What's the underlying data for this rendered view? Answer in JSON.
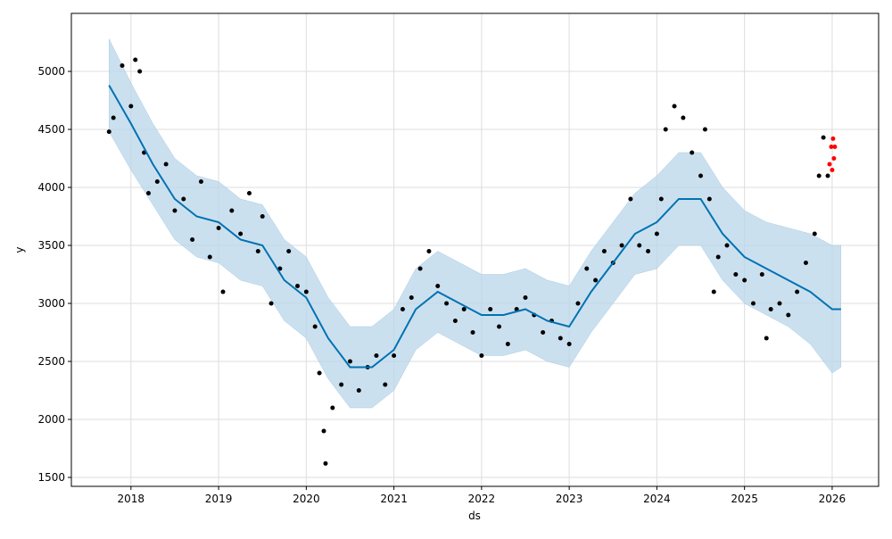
{
  "chart_data": {
    "type": "forecast",
    "x_label": "ds",
    "y_label": "y",
    "xlim": [
      2017.32,
      2026.53
    ],
    "xticks": [
      2018,
      2019,
      2020,
      2021,
      2022,
      2023,
      2024,
      2025,
      2026
    ],
    "ylim": [
      1423,
      5500
    ],
    "yticks": [
      1500,
      2000,
      2500,
      3000,
      3500,
      4000,
      4500,
      5000
    ],
    "grid": true,
    "forecast": {
      "color": "#0072b2",
      "band_color": "#b9d6ea",
      "x": [
        2017.75,
        2018.0,
        2018.25,
        2018.5,
        2018.75,
        2019.0,
        2019.25,
        2019.5,
        2019.75,
        2020.0,
        2020.25,
        2020.5,
        2020.75,
        2021.0,
        2021.25,
        2021.5,
        2021.75,
        2022.0,
        2022.25,
        2022.5,
        2022.75,
        2023.0,
        2023.25,
        2023.5,
        2023.75,
        2024.0,
        2024.25,
        2024.5,
        2024.75,
        2025.0,
        2025.25,
        2025.5,
        2025.75,
        2026.0,
        2026.1
      ],
      "yhat": [
        4880,
        4550,
        4200,
        3900,
        3750,
        3700,
        3550,
        3500,
        3200,
        3050,
        2700,
        2450,
        2450,
        2600,
        2950,
        3100,
        3000,
        2900,
        2900,
        2950,
        2850,
        2800,
        3100,
        3350,
        3600,
        3700,
        3900,
        3900,
        3600,
        3400,
        3300,
        3200,
        3100,
        2950,
        2950
      ],
      "yhat_upper": [
        5280,
        4900,
        4550,
        4250,
        4100,
        4050,
        3900,
        3850,
        3550,
        3400,
        3050,
        2800,
        2800,
        2950,
        3300,
        3450,
        3350,
        3250,
        3250,
        3300,
        3200,
        3150,
        3450,
        3700,
        3950,
        4100,
        4300,
        4300,
        4000,
        3800,
        3700,
        3650,
        3600,
        3500,
        3500
      ],
      "yhat_lower": [
        4480,
        4150,
        3850,
        3550,
        3400,
        3350,
        3200,
        3150,
        2850,
        2700,
        2350,
        2100,
        2100,
        2250,
        2600,
        2750,
        2650,
        2550,
        2550,
        2600,
        2500,
        2450,
        2750,
        3000,
        3250,
        3300,
        3500,
        3500,
        3200,
        3000,
        2900,
        2800,
        2650,
        2400,
        2450
      ]
    },
    "observed": {
      "color": "#000000",
      "x": [
        2017.75,
        2017.8,
        2017.9,
        2018.0,
        2018.05,
        2018.1,
        2018.15,
        2018.2,
        2018.3,
        2018.4,
        2018.5,
        2018.6,
        2018.7,
        2018.8,
        2018.9,
        2019.0,
        2019.05,
        2019.15,
        2019.25,
        2019.35,
        2019.45,
        2019.5,
        2019.6,
        2019.7,
        2019.8,
        2019.9,
        2020.0,
        2020.1,
        2020.15,
        2020.2,
        2020.22,
        2020.3,
        2020.4,
        2020.5,
        2020.6,
        2020.7,
        2020.8,
        2020.9,
        2021.0,
        2021.1,
        2021.2,
        2021.3,
        2021.4,
        2021.5,
        2021.6,
        2021.7,
        2021.8,
        2021.9,
        2022.0,
        2022.1,
        2022.2,
        2022.3,
        2022.4,
        2022.5,
        2022.6,
        2022.7,
        2022.8,
        2022.9,
        2023.0,
        2023.1,
        2023.2,
        2023.3,
        2023.4,
        2023.5,
        2023.6,
        2023.7,
        2023.8,
        2023.9,
        2024.0,
        2024.05,
        2024.1,
        2024.2,
        2024.3,
        2024.4,
        2024.5,
        2024.55,
        2024.6,
        2024.65,
        2024.7,
        2024.8,
        2024.9,
        2025.0,
        2025.1,
        2025.2,
        2025.25,
        2025.3,
        2025.4,
        2025.5,
        2025.6,
        2025.7,
        2025.8,
        2025.85,
        2025.9,
        2025.95
      ],
      "y": [
        4480,
        4600,
        5050,
        4700,
        5100,
        5000,
        4300,
        3950,
        4050,
        4200,
        3800,
        3900,
        3550,
        4050,
        3400,
        3650,
        3100,
        3800,
        3600,
        3950,
        3450,
        3750,
        3000,
        3300,
        3450,
        3150,
        3100,
        2800,
        2400,
        1900,
        1620,
        2100,
        2300,
        2500,
        2250,
        2450,
        2550,
        2300,
        2550,
        2950,
        3050,
        3300,
        3450,
        3150,
        3000,
        2850,
        2950,
        2750,
        2550,
        2950,
        2800,
        2650,
        2950,
        3050,
        2900,
        2750,
        2850,
        2700,
        2650,
        3000,
        3300,
        3200,
        3450,
        3350,
        3500,
        3900,
        3500,
        3450,
        3600,
        3900,
        4500,
        4700,
        4600,
        4300,
        4100,
        4500,
        3900,
        3100,
        3400,
        3500,
        3250,
        3200,
        3000,
        3250,
        2700,
        2950,
        3000,
        2900,
        3100,
        3350,
        3600,
        4100,
        4430,
        4100
      ]
    },
    "highlighted": {
      "color": "#ff0000",
      "x": [
        2025.97,
        2025.99,
        2026.0,
        2026.01,
        2026.02,
        2026.03
      ],
      "y": [
        4200,
        4350,
        4150,
        4420,
        4250,
        4350
      ]
    }
  }
}
